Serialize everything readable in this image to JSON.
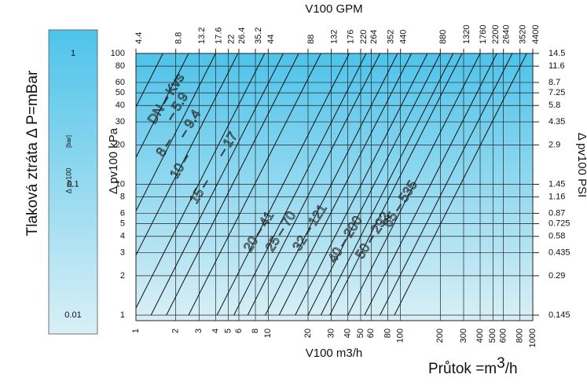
{
  "chart_data": {
    "type": "loglog-lines",
    "x_label": "V100 m3/h",
    "x2_label": "V100 GPM",
    "y_label": "Δ pv100  kPa",
    "y2_label": "Δ pv100  PSI",
    "side_title": "Tlaková ztráta  Δ  P=mBar",
    "footer": {
      "prefix": "Průtok =m",
      "sup": "3",
      "suffix": "/h"
    },
    "xlim": [
      1,
      1000
    ],
    "xticks": [
      1,
      2,
      3,
      4,
      5,
      6,
      8,
      10,
      20,
      30,
      40,
      50,
      60,
      80,
      100,
      200,
      300,
      400,
      500,
      600,
      800,
      1000
    ],
    "x2lim": [
      4.4,
      4400
    ],
    "x2ticks": [
      4.4,
      8.8,
      13.2,
      17.6,
      22,
      26.4,
      35.2,
      44,
      88,
      132,
      176,
      220,
      264,
      352,
      440,
      880,
      1320,
      1760,
      2200,
      2640,
      3520,
      4400
    ],
    "ylim": [
      1,
      100
    ],
    "yticks": [
      1,
      2,
      3,
      4,
      5,
      6,
      8,
      10,
      20,
      30,
      40,
      50,
      60,
      80,
      100
    ],
    "y2lim": [
      0.145,
      14.5
    ],
    "y2ticks": [
      0.145,
      0.29,
      0.435,
      0.58,
      0.725,
      0.87,
      1.16,
      1.45,
      2.9,
      4.35,
      5.8,
      7.25,
      8.7,
      11.6,
      14.5
    ],
    "colorbar": {
      "label": "Δ pv100",
      "unit": "[bar]",
      "lim": [
        0.01,
        1
      ],
      "ticks": [
        1,
        0.1,
        0.01
      ],
      "colors": [
        "#4ec3ea",
        "#d9eff6"
      ]
    },
    "grid": true,
    "kvs_lines": [
      1.6,
      2.5,
      4,
      5.9,
      9.4,
      13,
      17,
      25,
      41,
      55,
      70,
      95,
      121,
      160,
      200,
      250,
      292,
      400,
      535,
      700,
      900
    ],
    "kvs_labels": [
      "DN – Kvs",
      "– 5.9",
      "8 –",
      "– 9.4",
      "10 –",
      "– 17",
      "15 –",
      "20 – 41",
      "25 – 70",
      "32 – 121",
      "40 – 200",
      "50 – 292",
      "65 – 535"
    ]
  }
}
